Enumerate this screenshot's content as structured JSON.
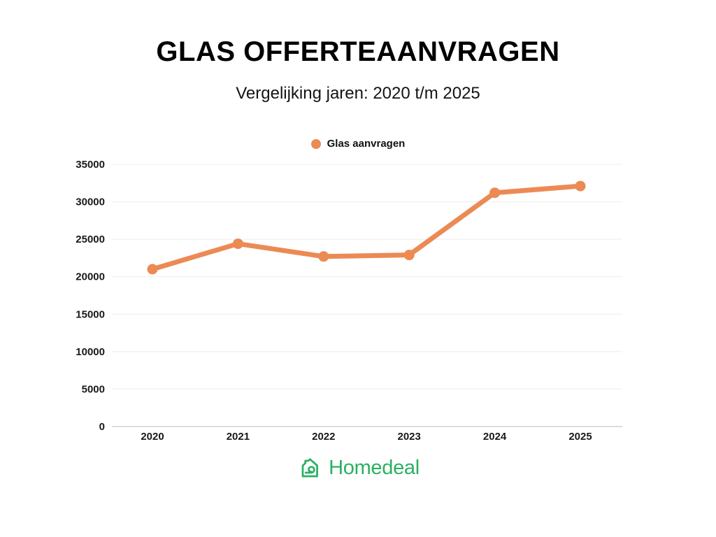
{
  "chart_data": {
    "type": "line",
    "title": "GLAS OFFERTEAANVRAGEN",
    "subtitle": "Vergelijking jaren: 2020 t/m 2025",
    "categories": [
      "2020",
      "2021",
      "2022",
      "2023",
      "2024",
      "2025"
    ],
    "series": [
      {
        "name": "Glas aanvragen",
        "values": [
          21000,
          24400,
          22700,
          22900,
          31200,
          32100
        ]
      }
    ],
    "xlabel": "",
    "ylabel": "",
    "ylim": [
      0,
      35000
    ],
    "ytick_step": 5000,
    "yticks": [
      0,
      5000,
      10000,
      15000,
      20000,
      25000,
      30000,
      35000
    ],
    "grid": true,
    "legend_position": "top-center",
    "line_color": "#EC8A54",
    "marker": "circle"
  },
  "colors": {
    "accent_orange": "#EC8A54",
    "text": "#111111",
    "gridline": "#ededed",
    "axis_line": "#dcdcdc"
  },
  "footer": {
    "brand": "Homedeal",
    "brand_color": "#29B162"
  }
}
